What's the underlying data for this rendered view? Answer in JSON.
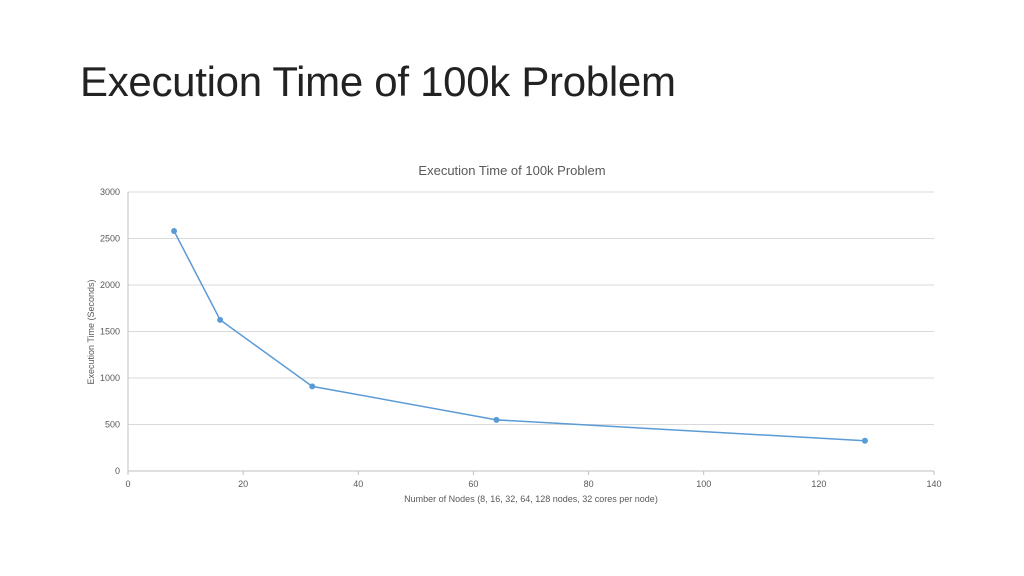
{
  "slide": {
    "title": "Execution Time of 100k Problem"
  },
  "chart_data": {
    "type": "scatter",
    "title": "Execution Time of 100k Problem",
    "xlabel": "Number of Nodes (8, 16, 32, 64, 128 nodes, 32 cores per node)",
    "ylabel": "Execution Time (Seconds)",
    "xlim": [
      0,
      140
    ],
    "ylim": [
      0,
      3000
    ],
    "xticks": [
      0,
      20,
      40,
      60,
      80,
      100,
      120,
      140
    ],
    "yticks": [
      0,
      500,
      1000,
      1500,
      2000,
      2500,
      3000
    ],
    "grid": "horizontal",
    "legend": "none",
    "series": [
      {
        "color": "#5B9BD5",
        "x": [
          8,
          16,
          32,
          64,
          128
        ],
        "y": [
          2580,
          1625,
          910,
          550,
          325
        ],
        "line": "straight-with-markers"
      }
    ]
  }
}
